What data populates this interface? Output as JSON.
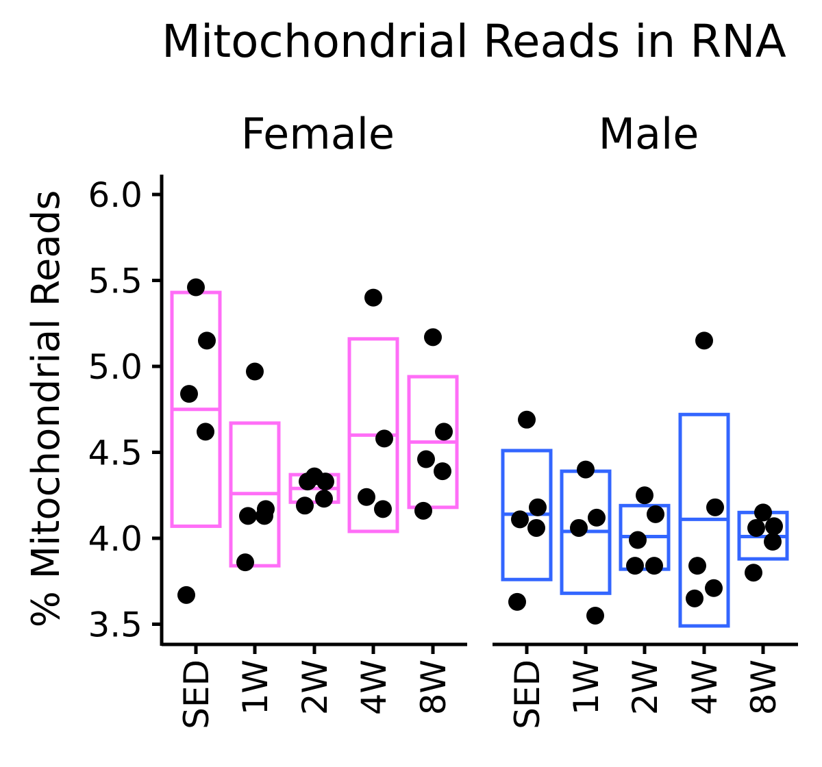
{
  "chart_data": {
    "type": "box",
    "title": "Mitochondrial Reads in RNA",
    "xlabel": "",
    "ylabel": "% Mitochondrial Reads",
    "ylim": [
      3.38,
      6.1
    ],
    "yticks": [
      "3.5",
      "4.0",
      "4.5",
      "5.0",
      "5.5",
      "6.0"
    ],
    "grid": false,
    "legend": "none",
    "categories": [
      "SED",
      "1W",
      "2W",
      "4W",
      "8W"
    ],
    "facets": [
      {
        "name": "Female",
        "color": "#ff6ef7",
        "groups": [
          {
            "category": "SED",
            "box": [
              4.07,
              4.75,
              5.43
            ],
            "points": [
              5.46,
              5.15,
              4.84,
              4.62,
              3.67
            ]
          },
          {
            "category": "1W",
            "box": [
              3.84,
              4.26,
              4.67
            ],
            "points": [
              4.97,
              4.17,
              4.13,
              4.13,
              3.86
            ]
          },
          {
            "category": "2W",
            "box": [
              4.21,
              4.29,
              4.37
            ],
            "points": [
              4.36,
              4.33,
              4.33,
              4.23,
              4.19
            ]
          },
          {
            "category": "4W",
            "box": [
              4.04,
              4.6,
              5.16
            ],
            "points": [
              5.4,
              4.58,
              4.24,
              4.17
            ]
          },
          {
            "category": "8W",
            "box": [
              4.18,
              4.56,
              4.94
            ],
            "points": [
              5.17,
              4.62,
              4.46,
              4.39,
              4.16
            ]
          }
        ]
      },
      {
        "name": "Male",
        "color": "#3366ff",
        "groups": [
          {
            "category": "SED",
            "box": [
              3.76,
              4.14,
              4.51
            ],
            "points": [
              4.69,
              4.18,
              4.11,
              4.06,
              3.63
            ]
          },
          {
            "category": "1W",
            "box": [
              3.68,
              4.04,
              4.39
            ],
            "points": [
              4.4,
              4.12,
              4.06,
              3.55
            ]
          },
          {
            "category": "2W",
            "box": [
              3.82,
              4.01,
              4.19
            ],
            "points": [
              4.25,
              4.14,
              3.99,
              3.84,
              3.84
            ]
          },
          {
            "category": "4W",
            "box": [
              3.49,
              4.11,
              4.72
            ],
            "points": [
              5.15,
              4.18,
              3.84,
              3.71,
              3.65
            ]
          },
          {
            "category": "8W",
            "box": [
              3.88,
              4.01,
              4.15
            ],
            "points": [
              4.15,
              4.07,
              4.06,
              3.98,
              3.8
            ]
          }
        ]
      }
    ]
  }
}
